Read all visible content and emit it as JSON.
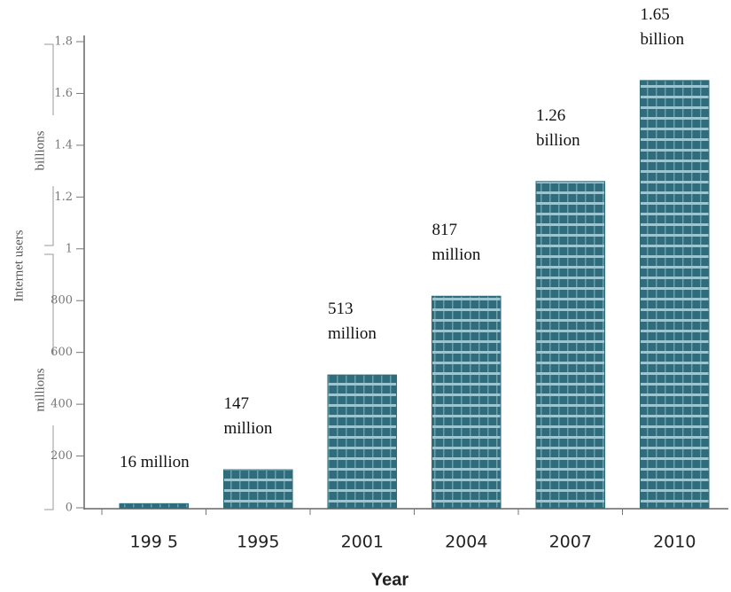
{
  "chart_data": {
    "type": "bar",
    "y_label": "Internet users",
    "y_unit_labels": [
      "millions",
      "billions"
    ],
    "x_label": "Year",
    "categories": [
      "199 5",
      "1995",
      "2001",
      "2004",
      "2007",
      "2010"
    ],
    "values": [
      16,
      147,
      513,
      817,
      1260,
      1650
    ],
    "value_labels": [
      "16 million",
      "147 million",
      "513 million",
      "817 million",
      "1.26 billion",
      "1.65 billion"
    ],
    "color": "#2f6d7c",
    "ylim": [
      0,
      1800
    ],
    "yticks": [
      0,
      200,
      400,
      600,
      800,
      {
        "value": 1000,
        "label": "1"
      },
      {
        "value": 1200,
        "label": "1.2"
      },
      {
        "value": 1400,
        "label": "1.4"
      },
      {
        "value": 1600,
        "label": "1.6"
      },
      {
        "value": 1800,
        "label": "1.8"
      }
    ]
  }
}
